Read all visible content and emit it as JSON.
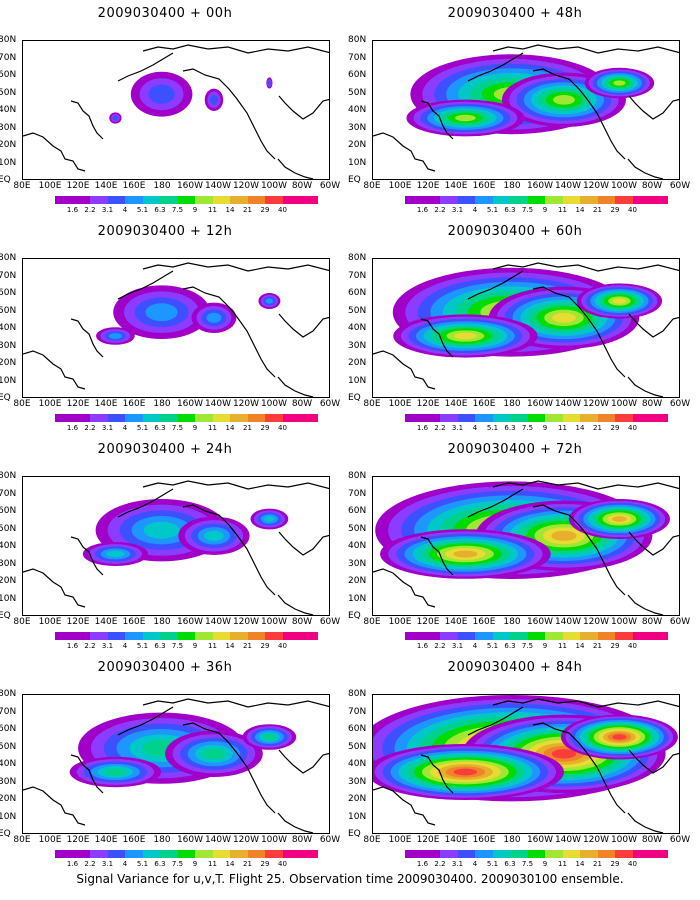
{
  "figure": {
    "caption": "Signal Variance for u,v,T. Flight 25. Observation time 2009030400. 2009030100 ensemble."
  },
  "panels": [
    {
      "title": "2009030400 + 00h",
      "level": 0
    },
    {
      "title": "2009030400 + 48h",
      "level": 4
    },
    {
      "title": "2009030400 + 12h",
      "level": 1
    },
    {
      "title": "2009030400 + 60h",
      "level": 5
    },
    {
      "title": "2009030400 + 24h",
      "level": 2
    },
    {
      "title": "2009030400 + 72h",
      "level": 6
    },
    {
      "title": "2009030400 + 36h",
      "level": 3
    },
    {
      "title": "2009030400 + 84h",
      "level": 7
    }
  ],
  "axes": {
    "lon_labels": [
      "80E",
      "100E",
      "120E",
      "140E",
      "160E",
      "180",
      "160W",
      "140W",
      "120W",
      "100W",
      "80W",
      "60W"
    ],
    "lat_labels": [
      "80N",
      "70N",
      "60N",
      "50N",
      "40N",
      "30N",
      "20N",
      "10N",
      "EQ"
    ]
  },
  "colorbar": {
    "labels": [
      "1.6",
      "2.2",
      "3.1",
      "4",
      "5.1",
      "6.3",
      "7.5",
      "9",
      "11",
      "14",
      "21",
      "29",
      "40"
    ],
    "colors": [
      "#a000c8",
      "#8c3cff",
      "#3c50ff",
      "#1e96ff",
      "#00c8c8",
      "#00d28c",
      "#00dc00",
      "#a0e632",
      "#e6dc32",
      "#e6af2d",
      "#f08228",
      "#fa3c3c",
      "#f00082"
    ]
  }
}
